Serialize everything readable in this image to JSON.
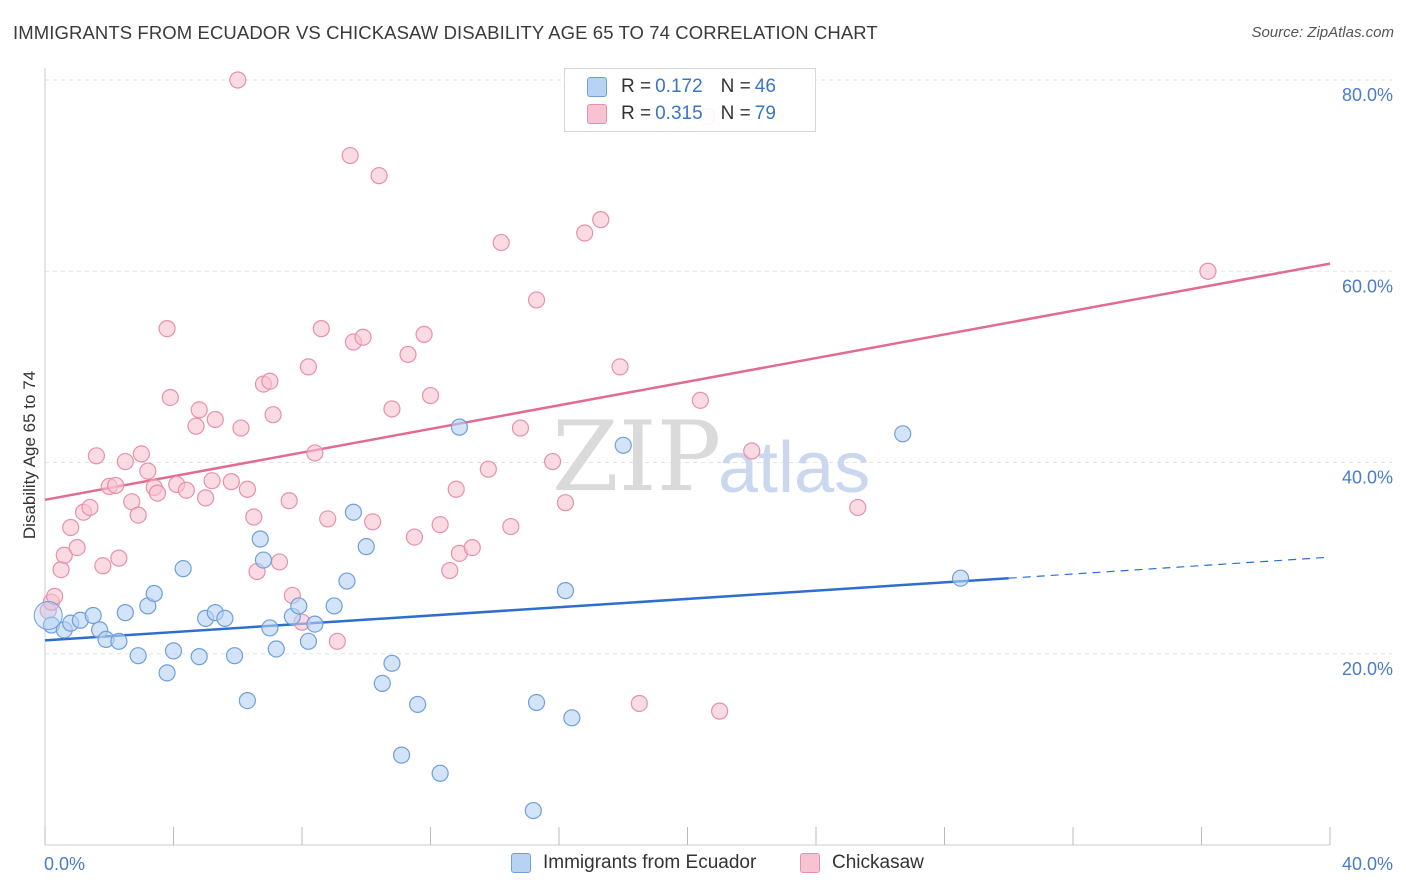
{
  "title": "IMMIGRANTS FROM ECUADOR VS CHICKASAW DISABILITY AGE 65 TO 74 CORRELATION CHART",
  "source": "Source: ZipAtlas.com",
  "watermark": {
    "zip": "ZIP",
    "atlas": "atlas"
  },
  "legend": {
    "rows": [
      {
        "r_label": "R = ",
        "r_value": "0.172",
        "n_label": "N = ",
        "n_value": "46"
      },
      {
        "r_label": "R = ",
        "r_value": "0.315",
        "n_label": "N = ",
        "n_value": "79"
      }
    ]
  },
  "bottom_legend": [
    "Immigrants from Ecuador",
    "Chickasaw"
  ],
  "colors": {
    "ecuador_fill": "#b8d2f3",
    "ecuador_stroke": "#6f9fd9",
    "ecuador_line": "#2e6fce",
    "chickasaw_fill": "#f7c3d2",
    "chickasaw_stroke": "#e890ab",
    "chickasaw_line": "#e26b92",
    "tick": "#4a7cc9",
    "grid": "#e3e3e3"
  },
  "chart_data": {
    "type": "scatter",
    "title": "IMMIGRANTS FROM ECUADOR VS CHICKASAW DISABILITY AGE 65 TO 74 CORRELATION CHART",
    "xlabel": "",
    "ylabel": "Disability Age 65 to 74",
    "xlim": [
      0,
      40
    ],
    "ylim": [
      0,
      80
    ],
    "x_tick_labels": [
      "0.0%",
      "40.0%"
    ],
    "y_tick_labels": [
      "20.0%",
      "40.0%",
      "60.0%",
      "80.0%"
    ],
    "y_ticks": [
      20,
      40,
      60,
      80
    ],
    "grid": true,
    "series": [
      {
        "name": "Immigrants from Ecuador",
        "points": [
          [
            0.2,
            23.0
          ],
          [
            0.6,
            22.5
          ],
          [
            0.8,
            23.2
          ],
          [
            1.1,
            23.5
          ],
          [
            1.5,
            24.0
          ],
          [
            1.7,
            22.5
          ],
          [
            1.9,
            21.5
          ],
          [
            2.3,
            21.3
          ],
          [
            2.5,
            24.3
          ],
          [
            2.9,
            19.8
          ],
          [
            3.2,
            25.0
          ],
          [
            3.4,
            26.3
          ],
          [
            3.8,
            18.0
          ],
          [
            4.0,
            20.3
          ],
          [
            4.3,
            28.9
          ],
          [
            4.8,
            19.7
          ],
          [
            5.0,
            23.7
          ],
          [
            5.3,
            24.3
          ],
          [
            5.6,
            23.7
          ],
          [
            5.9,
            19.8
          ],
          [
            6.3,
            15.1
          ],
          [
            6.8,
            29.8
          ],
          [
            6.7,
            32.0
          ],
          [
            7.0,
            22.7
          ],
          [
            7.2,
            20.5
          ],
          [
            7.7,
            23.9
          ],
          [
            7.9,
            25.0
          ],
          [
            8.2,
            21.3
          ],
          [
            8.4,
            23.1
          ],
          [
            9.0,
            25.0
          ],
          [
            9.4,
            27.6
          ],
          [
            9.6,
            34.8
          ],
          [
            10.0,
            31.2
          ],
          [
            10.5,
            16.9
          ],
          [
            10.8,
            19.0
          ],
          [
            11.1,
            9.4
          ],
          [
            11.6,
            14.7
          ],
          [
            12.3,
            7.5
          ],
          [
            12.9,
            43.7
          ],
          [
            15.2,
            3.6
          ],
          [
            15.3,
            14.9
          ],
          [
            16.2,
            26.6
          ],
          [
            16.4,
            13.3
          ],
          [
            18.0,
            41.8
          ],
          [
            26.7,
            43.0
          ],
          [
            28.5,
            27.9
          ]
        ]
      },
      {
        "name": "Chickasaw",
        "points": [
          [
            0.1,
            24.5
          ],
          [
            0.2,
            25.4
          ],
          [
            0.3,
            26.0
          ],
          [
            0.5,
            28.8
          ],
          [
            0.6,
            30.3
          ],
          [
            0.8,
            33.2
          ],
          [
            1.0,
            31.1
          ],
          [
            1.2,
            34.8
          ],
          [
            1.4,
            35.3
          ],
          [
            1.6,
            40.7
          ],
          [
            1.8,
            29.2
          ],
          [
            2.0,
            37.5
          ],
          [
            2.2,
            37.6
          ],
          [
            2.3,
            30.0
          ],
          [
            2.5,
            40.1
          ],
          [
            2.7,
            35.9
          ],
          [
            2.9,
            34.5
          ],
          [
            3.0,
            40.9
          ],
          [
            3.2,
            39.1
          ],
          [
            3.4,
            37.4
          ],
          [
            3.5,
            36.8
          ],
          [
            3.8,
            54.0
          ],
          [
            3.9,
            46.8
          ],
          [
            4.1,
            37.7
          ],
          [
            4.4,
            37.1
          ],
          [
            4.7,
            43.8
          ],
          [
            4.8,
            45.5
          ],
          [
            5.0,
            36.3
          ],
          [
            5.2,
            38.1
          ],
          [
            5.3,
            44.5
          ],
          [
            5.8,
            38.0
          ],
          [
            6.0,
            80.0
          ],
          [
            6.1,
            43.6
          ],
          [
            6.3,
            37.2
          ],
          [
            6.5,
            34.3
          ],
          [
            6.6,
            28.6
          ],
          [
            6.8,
            48.2
          ],
          [
            7.0,
            48.5
          ],
          [
            7.1,
            45.0
          ],
          [
            7.3,
            29.6
          ],
          [
            7.6,
            36.0
          ],
          [
            7.7,
            26.1
          ],
          [
            8.0,
            23.3
          ],
          [
            8.2,
            50.0
          ],
          [
            8.4,
            41.0
          ],
          [
            8.6,
            54.0
          ],
          [
            8.8,
            34.1
          ],
          [
            9.1,
            21.3
          ],
          [
            9.5,
            72.1
          ],
          [
            9.6,
            52.6
          ],
          [
            9.9,
            53.1
          ],
          [
            10.2,
            33.8
          ],
          [
            10.4,
            70.0
          ],
          [
            10.8,
            45.6
          ],
          [
            11.3,
            51.3
          ],
          [
            11.5,
            32.2
          ],
          [
            11.8,
            53.4
          ],
          [
            12.0,
            47.0
          ],
          [
            12.3,
            33.5
          ],
          [
            12.6,
            28.7
          ],
          [
            12.8,
            37.2
          ],
          [
            12.9,
            30.5
          ],
          [
            13.3,
            31.1
          ],
          [
            13.8,
            39.3
          ],
          [
            14.2,
            63.0
          ],
          [
            14.5,
            33.3
          ],
          [
            14.8,
            43.6
          ],
          [
            15.3,
            57.0
          ],
          [
            15.8,
            40.1
          ],
          [
            16.2,
            35.8
          ],
          [
            16.8,
            64.0
          ],
          [
            17.3,
            65.4
          ],
          [
            17.9,
            50.0
          ],
          [
            18.5,
            14.8
          ],
          [
            20.4,
            46.5
          ],
          [
            20.6,
            76.2
          ],
          [
            21.0,
            14.0
          ],
          [
            22.0,
            41.2
          ],
          [
            25.3,
            35.3
          ],
          [
            36.2,
            60.0
          ]
        ]
      }
    ],
    "trendlines": [
      {
        "series": "Immigrants from Ecuador",
        "x0": 0,
        "y0": 21.4,
        "x1": 30.0,
        "y1": 27.9,
        "dash_to_x": 40,
        "dash_to_y": 30.1
      },
      {
        "series": "Chickasaw",
        "x0": 0,
        "y0": 36.1,
        "x1": 40,
        "y1": 60.8
      }
    ]
  }
}
